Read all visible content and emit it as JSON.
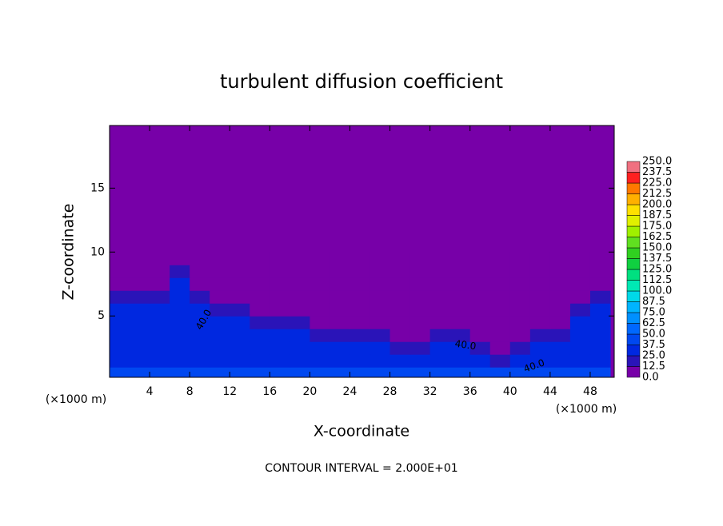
{
  "chart_data": {
    "type": "contour",
    "title": "turbulent diffusion coefficient",
    "xlabel": "X-coordinate",
    "ylabel": "Z-coordinate",
    "x_unit": "(×1000 m)",
    "footnote": "CONTOUR INTERVAL = 2.000E+01",
    "contour_labels": [
      "40.0",
      "40.0",
      "40.0"
    ],
    "xlim": [
      0,
      50.4
    ],
    "ylim": [
      0.2,
      19.9
    ],
    "xticks": [
      4,
      8,
      12,
      16,
      20,
      24,
      28,
      32,
      36,
      40,
      44,
      48
    ],
    "yticks": [
      5,
      10,
      15
    ],
    "x": [
      1,
      3,
      5,
      7,
      9,
      11,
      13,
      15,
      17,
      19,
      21,
      23,
      25,
      27,
      29,
      31,
      33,
      35,
      37,
      39,
      41,
      43,
      45,
      47,
      49
    ],
    "z": [
      0.5,
      1.5,
      2.5,
      3.5,
      4.5,
      5.5,
      6.5,
      7.5,
      8.5,
      9.5
    ],
    "values": [
      [
        45,
        45,
        45,
        45,
        45,
        45,
        45,
        45,
        45,
        45,
        45,
        45,
        45,
        45,
        45,
        45,
        45,
        45,
        45,
        45,
        45,
        45,
        45,
        45,
        45
      ],
      [
        35,
        35,
        35,
        35,
        35,
        35,
        35,
        35,
        35,
        35,
        35,
        35,
        35,
        35,
        35,
        35,
        35,
        35,
        35,
        20,
        35,
        35,
        35,
        35,
        35
      ],
      [
        35,
        35,
        35,
        35,
        35,
        35,
        35,
        35,
        35,
        35,
        35,
        35,
        35,
        35,
        20,
        20,
        35,
        35,
        20,
        0,
        20,
        35,
        35,
        35,
        35
      ],
      [
        35,
        35,
        35,
        35,
        35,
        35,
        35,
        35,
        35,
        35,
        20,
        20,
        20,
        20,
        0,
        0,
        20,
        20,
        0,
        0,
        0,
        20,
        20,
        35,
        35
      ],
      [
        35,
        35,
        35,
        35,
        35,
        35,
        35,
        20,
        20,
        20,
        0,
        0,
        0,
        0,
        0,
        0,
        0,
        0,
        0,
        0,
        0,
        0,
        0,
        35,
        35
      ],
      [
        35,
        35,
        35,
        35,
        35,
        20,
        20,
        0,
        0,
        0,
        0,
        0,
        0,
        0,
        0,
        0,
        0,
        0,
        0,
        0,
        0,
        0,
        0,
        20,
        35
      ],
      [
        20,
        20,
        20,
        35,
        20,
        0,
        0,
        0,
        0,
        0,
        0,
        0,
        0,
        0,
        0,
        0,
        0,
        0,
        0,
        0,
        0,
        0,
        0,
        0,
        20
      ],
      [
        0,
        0,
        0,
        35,
        0,
        0,
        0,
        0,
        0,
        0,
        0,
        0,
        0,
        0,
        0,
        0,
        0,
        0,
        0,
        0,
        0,
        0,
        0,
        0,
        0
      ],
      [
        0,
        0,
        0,
        20,
        0,
        0,
        0,
        0,
        0,
        0,
        0,
        0,
        0,
        0,
        0,
        0,
        0,
        0,
        0,
        0,
        0,
        0,
        0,
        0,
        0
      ],
      [
        0,
        0,
        0,
        0,
        0,
        0,
        0,
        0,
        0,
        0,
        0,
        0,
        0,
        0,
        0,
        0,
        0,
        0,
        0,
        0,
        0,
        0,
        0,
        0,
        0
      ]
    ],
    "colorbar": {
      "levels": [
        {
          "value": 0,
          "label": "0.0"
        },
        12.5,
        {
          "value": 25,
          "label": "25.0"
        },
        37.5,
        {
          "value": 50,
          "label": "50.0"
        },
        62.5,
        {
          "value": 75,
          "label": "75.0"
        },
        87.5,
        {
          "value": 100,
          "label": "100.0"
        },
        112.5,
        {
          "value": 125,
          "label": "125.0"
        },
        137.5,
        {
          "value": 150,
          "label": "150.0"
        },
        162.5,
        {
          "value": 175,
          "label": "175.0"
        },
        187.5,
        {
          "value": 200,
          "label": "200.0"
        },
        212.5,
        {
          "value": 225,
          "label": "225.0"
        },
        237.5,
        {
          "value": 250,
          "label": "250.0"
        }
      ],
      "colors": [
        "#7700a8",
        "#2a14b8",
        "#0028e0",
        "#0048f0",
        "#0068ff",
        "#0090ff",
        "#00b4ff",
        "#00d8e8",
        "#00e8b4",
        "#00e080",
        "#10d040",
        "#30d020",
        "#60e020",
        "#a0f000",
        "#e0f000",
        "#ffe000",
        "#ffb000",
        "#ff7800",
        "#ff2020",
        "#f07080"
      ]
    }
  }
}
